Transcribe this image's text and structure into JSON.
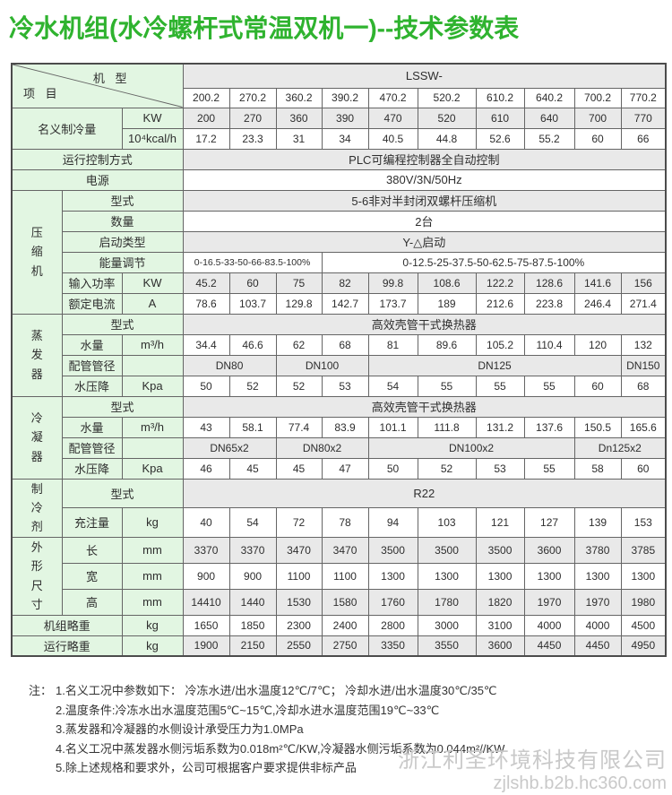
{
  "title": "冷水机组(水冷螺杆式常温双机一)--技术参数表",
  "colors": {
    "title_green": "#2fb32f",
    "label_bg_green": "#e2f6e2",
    "shaded_row_gray": "#e9e9e9",
    "border_gray": "#656565",
    "watermark_gray": "#c9c9c9"
  },
  "table": {
    "corner": {
      "left_label": "项 目",
      "right_label": "机 型"
    },
    "series_label": "LSSW-",
    "models": [
      "200.2",
      "270.2",
      "360.2",
      "390.2",
      "470.2",
      "520.2",
      "610.2",
      "640.2",
      "700.2",
      "770.2"
    ],
    "rows": [
      {
        "label": "名义制冷量",
        "label_cols": 2,
        "label_rows": 2,
        "unit": "KW",
        "values": [
          "200",
          "270",
          "360",
          "390",
          "470",
          "520",
          "610",
          "640",
          "700",
          "770"
        ],
        "shaded": true
      },
      {
        "skip_label": true,
        "unit": "10⁴kcal/h",
        "values": [
          "17.2",
          "23.3",
          "31",
          "34",
          "40.5",
          "44.8",
          "52.6",
          "55.2",
          "60",
          "66"
        ],
        "shaded": false
      },
      {
        "label": "运行控制方式",
        "label_cols": 3,
        "full": "PLC可编程控制器全自动控制",
        "shaded": true
      },
      {
        "label": "电源",
        "label_cols": 3,
        "full": "380V/3N/50Hz",
        "shaded": false
      },
      {
        "group": {
          "label": "压\n缩\n机",
          "rows": 6
        },
        "label": "型式",
        "label_cols": 2,
        "full": "5-6非对半封闭双螺杆压缩机",
        "shaded": true
      },
      {
        "label": "数量",
        "label_cols": 2,
        "full": "2台",
        "shaded": false
      },
      {
        "label": "启动类型",
        "label_cols": 2,
        "full": "Y-△启动",
        "shaded": true
      },
      {
        "label": "能量调节",
        "label_cols": 2,
        "spans": [
          {
            "text": "0-16.5-33-50-66-83.5-100%",
            "cols": 3
          },
          {
            "text": "0-12.5-25-37.5-50-62.5-75-87.5-100%",
            "cols": 7
          }
        ],
        "shaded": false
      },
      {
        "label": "输入功率",
        "unit": "KW",
        "values": [
          "45.2",
          "60",
          "75",
          "82",
          "99.8",
          "108.6",
          "122.2",
          "128.6",
          "141.6",
          "156"
        ],
        "shaded": true
      },
      {
        "label": "额定电流",
        "unit": "A",
        "values": [
          "78.6",
          "103.7",
          "129.8",
          "142.7",
          "173.7",
          "189",
          "212.6",
          "223.8",
          "246.4",
          "271.4"
        ],
        "shaded": false
      },
      {
        "group": {
          "label": "蒸\n发\n器",
          "rows": 4
        },
        "label": "型式",
        "label_cols": 2,
        "full": "高效壳管干式换热器",
        "shaded": true
      },
      {
        "label": "水量",
        "unit": "m³/h",
        "values": [
          "34.4",
          "46.6",
          "62",
          "68",
          "81",
          "89.6",
          "105.2",
          "110.4",
          "120",
          "132"
        ],
        "shaded": false
      },
      {
        "label": "配管管径",
        "unit": "",
        "spans": [
          {
            "text": "DN80",
            "cols": 2
          },
          {
            "text": "DN100",
            "cols": 2
          },
          {
            "text": "DN125",
            "cols": 5
          },
          {
            "text": "DN150",
            "cols": 1
          }
        ],
        "shaded": true
      },
      {
        "label": "水压降",
        "unit": "Kpa",
        "values": [
          "50",
          "52",
          "52",
          "53",
          "54",
          "55",
          "55",
          "55",
          "60",
          "68"
        ],
        "shaded": false
      },
      {
        "group": {
          "label": "冷\n凝\n器",
          "rows": 4
        },
        "label": "型式",
        "label_cols": 2,
        "full": "高效壳管干式换热器",
        "shaded": true
      },
      {
        "label": "水量",
        "unit": "m³/h",
        "values": [
          "43",
          "58.1",
          "77.4",
          "83.9",
          "101.1",
          "111.8",
          "131.2",
          "137.6",
          "150.5",
          "165.6"
        ],
        "shaded": false
      },
      {
        "label": "配管管径",
        "unit": "",
        "spans": [
          {
            "text": "DN65x2",
            "cols": 2
          },
          {
            "text": "DN80x2",
            "cols": 2
          },
          {
            "text": "DN100x2",
            "cols": 4
          },
          {
            "text": "Dn125x2",
            "cols": 2
          }
        ],
        "shaded": true
      },
      {
        "label": "水压降",
        "unit": "Kpa",
        "values": [
          "46",
          "45",
          "45",
          "47",
          "50",
          "52",
          "53",
          "55",
          "58",
          "60"
        ],
        "shaded": false
      },
      {
        "group": {
          "label": "制\n冷\n剂",
          "rows": 2
        },
        "label": "型式",
        "label_cols": 2,
        "full": "R22",
        "shaded": true
      },
      {
        "label": "充注量",
        "unit": "kg",
        "values": [
          "40",
          "54",
          "72",
          "78",
          "94",
          "103",
          "121",
          "127",
          "139",
          "153"
        ],
        "shaded": false
      },
      {
        "group": {
          "label": "外\n形\n尺\n寸",
          "rows": 3
        },
        "label": "长",
        "unit": "mm",
        "values": [
          "3370",
          "3370",
          "3470",
          "3470",
          "3500",
          "3500",
          "3500",
          "3600",
          "3780",
          "3785"
        ],
        "shaded": true
      },
      {
        "label": "宽",
        "unit": "mm",
        "values": [
          "900",
          "900",
          "1100",
          "1100",
          "1300",
          "1300",
          "1300",
          "1300",
          "1300",
          "1300"
        ],
        "shaded": false
      },
      {
        "label": "高",
        "unit": "mm",
        "values": [
          "14410",
          "1440",
          "1530",
          "1580",
          "1760",
          "1780",
          "1820",
          "1970",
          "1970",
          "1980"
        ],
        "shaded": true
      },
      {
        "label": "机组略重",
        "label_cols": 2,
        "unit": "kg",
        "values": [
          "1650",
          "1850",
          "2300",
          "2400",
          "2800",
          "3000",
          "3100",
          "4000",
          "4000",
          "4500"
        ],
        "shaded": false
      },
      {
        "label": "运行略重",
        "label_cols": 2,
        "unit": "kg",
        "values": [
          "1900",
          "2150",
          "2550",
          "2750",
          "3350",
          "3550",
          "3600",
          "4450",
          "4450",
          "4950"
        ],
        "shaded": true
      }
    ]
  },
  "notes": {
    "prefix": "注：",
    "items": [
      "1.名义工况中参数如下： 冷冻水进/出水温度12℃/7℃； 冷却水进/出水温度30℃/35℃",
      "2.温度条件:冷冻水出水温度范围5℃~15℃,冷却水进水温度范围19℃~33℃",
      "3.蒸发器和冷凝器的水侧设计承受压力为1.0MPa",
      "4.名义工况中蒸发器水侧污垢系数为0.018m²℃/KW,冷凝器水侧污垢系数为0.044m²//KW",
      "5.除上述规格和要求外，公司可根据客户要求提供非标产品"
    ]
  },
  "watermark": {
    "company": "浙江利圣环境科技有限公司",
    "site": "zjlshb.b2b.hc360.com"
  }
}
